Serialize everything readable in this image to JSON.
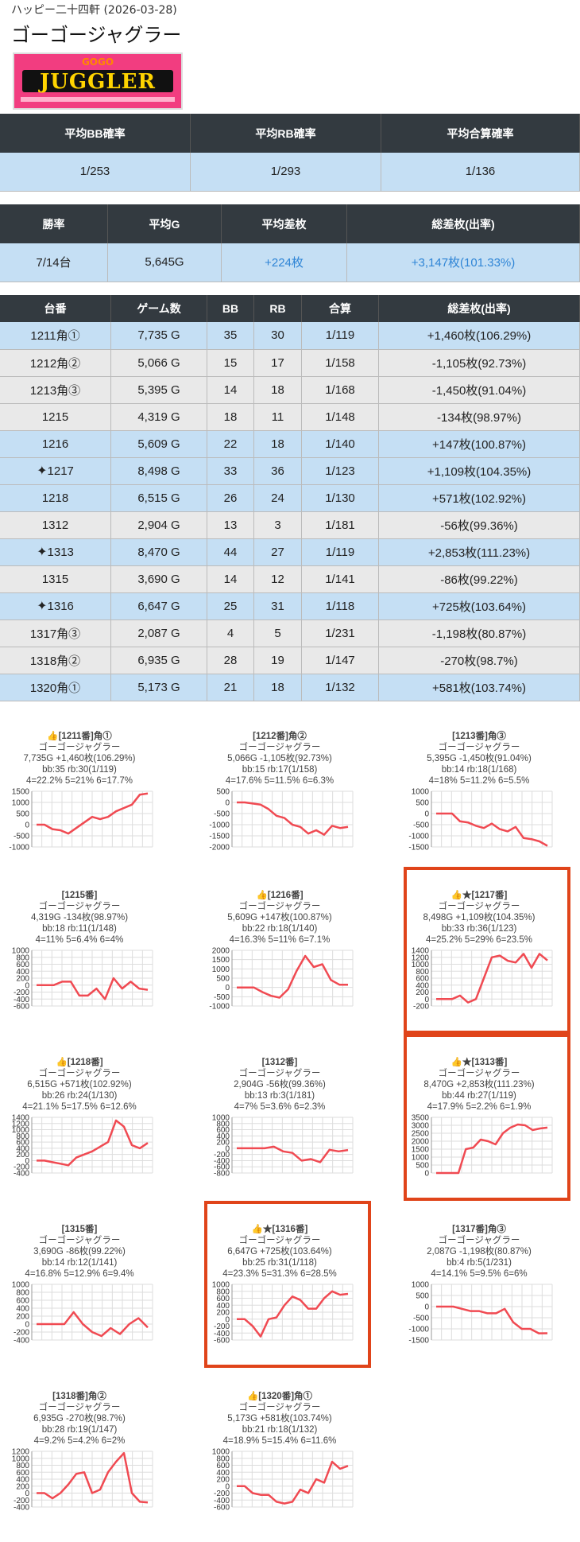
{
  "header": {
    "store": "ハッピー二十四軒 (2026-03-28)",
    "title": "ゴーゴージャグラー"
  },
  "logo": {
    "main": "JUGGLER",
    "sub": "GOGO"
  },
  "summary1": {
    "headers": [
      "平均BB確率",
      "平均RB確率",
      "平均合算確率"
    ],
    "values": [
      "1/253",
      "1/293",
      "1/136"
    ]
  },
  "summary2": {
    "headers": [
      "勝率",
      "平均G",
      "平均差枚",
      "総差枚(出率)"
    ],
    "values": [
      "7/14台",
      "5,645G",
      "+224枚",
      "+3,147枚(101.33%)"
    ]
  },
  "machines": {
    "headers": [
      "台番",
      "ゲーム数",
      "BB",
      "RB",
      "合算",
      "総差枚(出率)"
    ],
    "rows": [
      {
        "id": "1211角①",
        "games": "7,735 G",
        "bb": "35",
        "rb": "30",
        "total": "1/119",
        "diff": "+1,460枚(106.29%)",
        "color": "blue",
        "spark": false
      },
      {
        "id": "1212角②",
        "games": "5,066 G",
        "bb": "15",
        "rb": "17",
        "total": "1/158",
        "diff": "-1,105枚(92.73%)",
        "color": "gray",
        "spark": false
      },
      {
        "id": "1213角③",
        "games": "5,395 G",
        "bb": "14",
        "rb": "18",
        "total": "1/168",
        "diff": "-1,450枚(91.04%)",
        "color": "gray",
        "spark": false
      },
      {
        "id": "1215",
        "games": "4,319 G",
        "bb": "18",
        "rb": "11",
        "total": "1/148",
        "diff": "-134枚(98.97%)",
        "color": "gray",
        "spark": false
      },
      {
        "id": "1216",
        "games": "5,609 G",
        "bb": "22",
        "rb": "18",
        "total": "1/140",
        "diff": "+147枚(100.87%)",
        "color": "blue",
        "spark": false
      },
      {
        "id": "1217",
        "games": "8,498 G",
        "bb": "33",
        "rb": "36",
        "total": "1/123",
        "diff": "+1,109枚(104.35%)",
        "color": "blue",
        "spark": true
      },
      {
        "id": "1218",
        "games": "6,515 G",
        "bb": "26",
        "rb": "24",
        "total": "1/130",
        "diff": "+571枚(102.92%)",
        "color": "blue",
        "spark": false
      },
      {
        "id": "1312",
        "games": "2,904 G",
        "bb": "13",
        "rb": "3",
        "total": "1/181",
        "diff": "-56枚(99.36%)",
        "color": "gray",
        "spark": false
      },
      {
        "id": "1313",
        "games": "8,470 G",
        "bb": "44",
        "rb": "27",
        "total": "1/119",
        "diff": "+2,853枚(111.23%)",
        "color": "blue",
        "spark": true
      },
      {
        "id": "1315",
        "games": "3,690 G",
        "bb": "14",
        "rb": "12",
        "total": "1/141",
        "diff": "-86枚(99.22%)",
        "color": "gray",
        "spark": false
      },
      {
        "id": "1316",
        "games": "6,647 G",
        "bb": "25",
        "rb": "31",
        "total": "1/118",
        "diff": "+725枚(103.64%)",
        "color": "blue",
        "spark": true
      },
      {
        "id": "1317角③",
        "games": "2,087 G",
        "bb": "4",
        "rb": "5",
        "total": "1/231",
        "diff": "-1,198枚(80.87%)",
        "color": "gray",
        "spark": false
      },
      {
        "id": "1318角②",
        "games": "6,935 G",
        "bb": "28",
        "rb": "19",
        "total": "1/147",
        "diff": "-270枚(98.7%)",
        "color": "gray",
        "spark": false
      },
      {
        "id": "1320角①",
        "games": "5,173 G",
        "bb": "21",
        "rb": "18",
        "total": "1/132",
        "diff": "+581枚(103.74%)",
        "color": "blue",
        "spark": false
      }
    ]
  },
  "cards": [
    {
      "l1": "👍[1211番]角①",
      "l2": "ゴーゴージャグラー",
      "l3": "7,735G +1,460枚(106.29%)",
      "l4": "bb:35 rb:30(1/119)",
      "l5": "4=22.2% 5=21% 6=17.7%",
      "hl": false,
      "chart_data": {
        "type": "line",
        "ylim": [
          -1000,
          1500
        ],
        "yticks": [
          1500,
          1000,
          500,
          0,
          -500,
          -1000
        ],
        "y": [
          0,
          0,
          -200,
          -250,
          -400,
          -150,
          100,
          350,
          250,
          350,
          600,
          750,
          900,
          1350,
          1400
        ]
      }
    },
    {
      "l1": "[1212番]角②",
      "l2": "ゴーゴージャグラー",
      "l3": "5,066G -1,105枚(92.73%)",
      "l4": "bb:15 rb:17(1/158)",
      "l5": "4=17.6% 5=11.5% 6=6.3%",
      "hl": false,
      "chart_data": {
        "type": "line",
        "ylim": [
          -2000,
          500
        ],
        "yticks": [
          500,
          0,
          -500,
          -1000,
          -1500,
          -2000
        ],
        "y": [
          0,
          0,
          -50,
          -100,
          -300,
          -600,
          -700,
          -1000,
          -1100,
          -1400,
          -1250,
          -1450,
          -1050,
          -1150,
          -1100
        ]
      }
    },
    {
      "l1": "[1213番]角③",
      "l2": "ゴーゴージャグラー",
      "l3": "5,395G -1,450枚(91.04%)",
      "l4": "bb:14 rb:18(1/168)",
      "l5": "4=18% 5=11.2% 6=5.5%",
      "hl": false,
      "chart_data": {
        "type": "line",
        "ylim": [
          -1500,
          1000
        ],
        "yticks": [
          1000,
          500,
          0,
          -500,
          -1000,
          -1500
        ],
        "y": [
          0,
          0,
          0,
          -350,
          -400,
          -550,
          -650,
          -450,
          -700,
          -800,
          -600,
          -1100,
          -1150,
          -1250,
          -1450
        ]
      }
    },
    {
      "l1": "[1215番]",
      "l2": "ゴーゴージャグラー",
      "l3": "4,319G -134枚(98.97%)",
      "l4": "bb:18 rb:11(1/148)",
      "l5": "4=11% 5=6.4% 6=4%",
      "hl": false,
      "chart_data": {
        "type": "line",
        "ylim": [
          -600,
          1000
        ],
        "yticks": [
          1000,
          800,
          600,
          400,
          200,
          0,
          -200,
          -400,
          -600
        ],
        "y": [
          0,
          0,
          0,
          100,
          100,
          -300,
          -300,
          -100,
          -400,
          200,
          -100,
          100,
          -100,
          -134
        ]
      }
    },
    {
      "l1": "👍[1216番]",
      "l2": "ゴーゴージャグラー",
      "l3": "5,609G +147枚(100.87%)",
      "l4": "bb:22 rb:18(1/140)",
      "l5": "4=16.3% 5=11% 6=7.1%",
      "hl": false,
      "chart_data": {
        "type": "line",
        "ylim": [
          -1000,
          2000
        ],
        "yticks": [
          2000,
          1500,
          1000,
          500,
          0,
          -500,
          -1000
        ],
        "y": [
          0,
          0,
          0,
          -250,
          -450,
          -550,
          -100,
          900,
          1700,
          1100,
          1250,
          400,
          147,
          147
        ]
      }
    },
    {
      "l1": "👍★[1217番]",
      "l2": "ゴーゴージャグラー",
      "l3": "8,498G +1,109枚(104.35%)",
      "l4": "bb:33 rb:36(1/123)",
      "l5": "4=25.2% 5=29% 6=23.5%",
      "hl": true,
      "chart_data": {
        "type": "line",
        "ylim": [
          -200,
          1400
        ],
        "yticks": [
          1400,
          1200,
          1000,
          800,
          600,
          400,
          200,
          0,
          -200
        ],
        "y": [
          0,
          0,
          0,
          100,
          -100,
          0,
          600,
          1200,
          1250,
          1100,
          1050,
          1300,
          900,
          1300,
          1109
        ]
      }
    },
    {
      "l1": "👍[1218番]",
      "l2": "ゴーゴージャグラー",
      "l3": "6,515G +571枚(102.92%)",
      "l4": "bb:26 rb:24(1/130)",
      "l5": "4=21.1% 5=17.5% 6=12.6%",
      "hl": false,
      "chart_data": {
        "type": "line",
        "ylim": [
          -400,
          1400
        ],
        "yticks": [
          1400,
          1200,
          1000,
          800,
          600,
          400,
          200,
          0,
          -200,
          -400
        ],
        "y": [
          0,
          0,
          -50,
          -100,
          -150,
          100,
          200,
          300,
          450,
          600,
          1300,
          1100,
          500,
          400,
          571
        ]
      }
    },
    {
      "l1": "[1312番]",
      "l2": "ゴーゴージャグラー",
      "l3": "2,904G -56枚(99.36%)",
      "l4": "bb:13 rb:3(1/181)",
      "l5": "4=7% 5=3.6% 6=2.3%",
      "hl": false,
      "chart_data": {
        "type": "line",
        "ylim": [
          -800,
          1000
        ],
        "yticks": [
          1000,
          800,
          600,
          400,
          200,
          0,
          -200,
          -400,
          -600,
          -800
        ],
        "y": [
          0,
          0,
          0,
          0,
          50,
          -100,
          -150,
          -400,
          -350,
          -450,
          -50,
          -100,
          -56
        ]
      }
    },
    {
      "l1": "👍★[1313番]",
      "l2": "ゴーゴージャグラー",
      "l3": "8,470G +2,853枚(111.23%)",
      "l4": "bb:44 rb:27(1/119)",
      "l5": "4=17.9% 5=2.2% 6=1.9%",
      "hl": true,
      "chart_data": {
        "type": "line",
        "ylim": [
          0,
          3500
        ],
        "yticks": [
          3500,
          3000,
          2500,
          2000,
          1500,
          1000,
          500,
          0
        ],
        "y": [
          0,
          0,
          0,
          0,
          1500,
          1600,
          2100,
          2000,
          1800,
          2500,
          2850,
          3050,
          3000,
          2700,
          2800,
          2853
        ]
      }
    },
    {
      "l1": "[1315番]",
      "l2": "ゴーゴージャグラー",
      "l3": "3,690G -86枚(99.22%)",
      "l4": "bb:14 rb:12(1/141)",
      "l5": "4=16.8% 5=12.9% 6=9.4%",
      "hl": false,
      "chart_data": {
        "type": "line",
        "ylim": [
          -400,
          1000
        ],
        "yticks": [
          1000,
          800,
          600,
          400,
          200,
          0,
          -200,
          -400
        ],
        "y": [
          0,
          0,
          0,
          0,
          300,
          0,
          -200,
          -300,
          -100,
          -250,
          0,
          150,
          -86
        ]
      }
    },
    {
      "l1": "👍★[1316番]",
      "l2": "ゴーゴージャグラー",
      "l3": "6,647G +725枚(103.64%)",
      "l4": "bb:25 rb:31(1/118)",
      "l5": "4=23.3% 5=31.3% 6=28.5%",
      "hl": true,
      "chart_data": {
        "type": "line",
        "ylim": [
          -600,
          1000
        ],
        "yticks": [
          1000,
          800,
          600,
          400,
          200,
          0,
          -200,
          -400,
          -600
        ],
        "y": [
          0,
          0,
          -200,
          -500,
          0,
          50,
          400,
          650,
          550,
          300,
          300,
          600,
          800,
          700,
          725
        ]
      }
    },
    {
      "l1": "[1317番]角③",
      "l2": "ゴーゴージャグラー",
      "l3": "2,087G -1,198枚(80.87%)",
      "l4": "bb:4 rb:5(1/231)",
      "l5": "4=14.1% 5=9.5% 6=6%",
      "hl": false,
      "chart_data": {
        "type": "line",
        "ylim": [
          -1500,
          1000
        ],
        "yticks": [
          1000,
          500,
          0,
          -500,
          -1000,
          -1500
        ],
        "y": [
          0,
          0,
          0,
          -100,
          -200,
          -200,
          -300,
          -300,
          -100,
          -700,
          -1000,
          -1000,
          -1200,
          -1198
        ]
      }
    },
    {
      "l1": "[1318番]角②",
      "l2": "ゴーゴージャグラー",
      "l3": "6,935G -270枚(98.7%)",
      "l4": "bb:28 rb:19(1/147)",
      "l5": "4=9.2% 5=4.2% 6=2%",
      "hl": false,
      "chart_data": {
        "type": "line",
        "ylim": [
          -400,
          1200
        ],
        "yticks": [
          1200,
          1000,
          800,
          600,
          400,
          200,
          0,
          -200,
          -400
        ],
        "y": [
          0,
          0,
          -150,
          0,
          250,
          550,
          600,
          0,
          100,
          600,
          900,
          1150,
          0,
          -250,
          -270
        ]
      }
    },
    {
      "l1": "👍[1320番]角①",
      "l2": "ゴーゴージャグラー",
      "l3": "5,173G +581枚(103.74%)",
      "l4": "bb:21 rb:18(1/132)",
      "l5": "4=18.9% 5=15.4% 6=11.6%",
      "hl": false,
      "chart_data": {
        "type": "line",
        "ylim": [
          -600,
          1000
        ],
        "yticks": [
          1000,
          800,
          600,
          400,
          200,
          0,
          -200,
          -400,
          -600
        ],
        "y": [
          0,
          0,
          -200,
          -250,
          -250,
          -450,
          -500,
          -450,
          -100,
          -200,
          200,
          100,
          700,
          500,
          581
        ]
      }
    }
  ],
  "colors": {
    "header_bg": "#333a40",
    "row_blue": "#c5dff4",
    "row_gray": "#e9e9e9",
    "positive_text": "#2f85d6",
    "line": "#f04a52",
    "highlight": "#e0441a"
  }
}
